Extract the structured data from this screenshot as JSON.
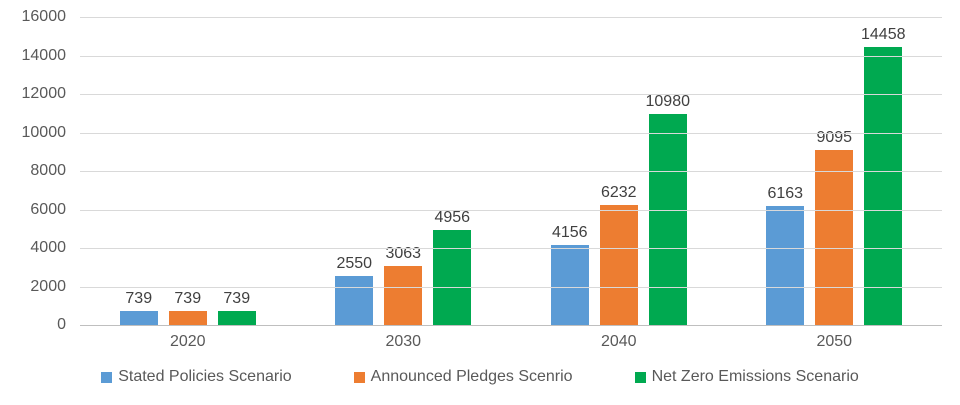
{
  "chart_data": {
    "type": "bar",
    "title": "",
    "xlabel": "",
    "ylabel": "",
    "categories": [
      "2020",
      "2030",
      "2040",
      "2050"
    ],
    "series": [
      {
        "name": "Stated Policies Scenario",
        "color": "#5B9BD5",
        "values": [
          739,
          2550,
          4156,
          6163
        ]
      },
      {
        "name": "Announced Pledges Scenrio",
        "color": "#ED7D31",
        "values": [
          739,
          3063,
          6232,
          9095
        ]
      },
      {
        "name": "Net Zero Emissions Scenario",
        "color": "#00A950",
        "values": [
          739,
          4956,
          10980,
          14458
        ]
      }
    ],
    "ylim": [
      0,
      16000
    ],
    "ytick_step": 2000,
    "ytick_labels": [
      "0",
      "2000",
      "4000",
      "6000",
      "8000",
      "10000",
      "12000",
      "14000",
      "16000"
    ],
    "grid": true,
    "data_labels": true,
    "legend_position": "bottom"
  },
  "colors": {
    "axis_text": "#595959",
    "data_label_text": "#404040",
    "legend_text": "#595959",
    "gridline": "#D9D9D9",
    "axis_line": "#BFBFBF",
    "background": "#FFFFFF"
  }
}
